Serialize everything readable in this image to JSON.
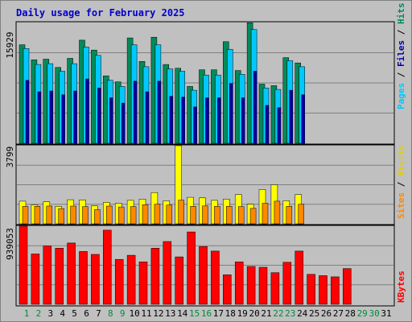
{
  "chart_data": {
    "type": "bar",
    "title": "Daily usage for February 2025",
    "categories": [
      "1",
      "2",
      "3",
      "4",
      "5",
      "6",
      "7",
      "8",
      "9",
      "10",
      "11",
      "12",
      "13",
      "14",
      "15",
      "16",
      "17",
      "18",
      "19",
      "20",
      "21",
      "22",
      "23",
      "24",
      "25",
      "26",
      "27",
      "28",
      "29",
      "30",
      "31"
    ],
    "weekend_days": [
      "1",
      "2",
      "8",
      "9",
      "15",
      "16",
      "22",
      "23",
      "29",
      "30"
    ],
    "panels": {
      "hits_files_pages": {
        "max_label": "15929",
        "ylim": [
          0,
          15929
        ],
        "legend": [
          "Pages",
          "Files",
          "Hits"
        ],
        "series": [
          {
            "name": "Hits",
            "color": "#008b5b",
            "values": [
              13000,
              11000,
              11100,
              10000,
              11200,
              13600,
              12300,
              8900,
              8100,
              13900,
              10800,
              14000,
              10400,
              9900,
              7500,
              9700,
              9700,
              13400,
              9600,
              15900,
              7800,
              7600,
              11300,
              10600,
              null,
              null,
              null,
              null,
              null,
              null,
              null
            ]
          },
          {
            "name": "Files",
            "color": "#00c8ff",
            "values": [
              12500,
              10400,
              10500,
              9500,
              10500,
              12700,
              11600,
              8300,
              7500,
              13000,
              10100,
              13000,
              9800,
              9500,
              7000,
              9000,
              9000,
              12400,
              9100,
              15000,
              7300,
              7100,
              10900,
              10100,
              null,
              null,
              null,
              null,
              null,
              null,
              null
            ]
          },
          {
            "name": "Pages",
            "color": "#0000aa",
            "values": [
              8300,
              6800,
              6900,
              6400,
              6900,
              8500,
              7300,
              6000,
              5300,
              8200,
              6800,
              8200,
              6200,
              6100,
              4800,
              6000,
              6000,
              7900,
              6000,
              9500,
              5000,
              4700,
              7000,
              6400,
              null,
              null,
              null,
              null,
              null,
              null,
              null
            ]
          }
        ]
      },
      "visits_sites": {
        "max_label": "3799",
        "ylim": [
          0,
          3799
        ],
        "legend": [
          "Sites",
          "Visits"
        ],
        "series": [
          {
            "name": "Visits",
            "color": "#ffff00",
            "values": [
              1100,
              920,
              1070,
              850,
              1170,
              1160,
              870,
              1040,
              1000,
              1140,
              1200,
              1520,
              1120,
              3800,
              1290,
              1260,
              1140,
              1200,
              1420,
              950,
              1670,
              1900,
              1120,
              1420,
              null,
              null,
              null,
              null,
              null,
              null,
              null
            ]
          },
          {
            "name": "Sites",
            "color": "#ff8800",
            "values": [
              850,
              850,
              860,
              740,
              860,
              840,
              690,
              860,
              820,
              840,
              930,
              950,
              910,
              1150,
              850,
              870,
              850,
              850,
              840,
              750,
              1000,
              1100,
              850,
              950,
              null,
              null,
              null,
              null,
              null,
              null,
              null
            ]
          }
        ]
      },
      "kbytes": {
        "max_label": "939053",
        "ylim": [
          0,
          939053
        ],
        "legend": [
          "KBytes"
        ],
        "series": [
          {
            "name": "KBytes",
            "color": "#ff0000",
            "values": [
              939053,
              605000,
              700000,
              675000,
              737000,
              635000,
              600000,
              892000,
              540000,
              590000,
              510000,
              675000,
              755000,
              570000,
              870000,
              695000,
              640000,
              355000,
              510000,
              455000,
              445000,
              380000,
              505000,
              640000,
              360000,
              345000,
              330000,
              430000,
              null,
              null,
              null
            ]
          }
        ]
      }
    }
  }
}
